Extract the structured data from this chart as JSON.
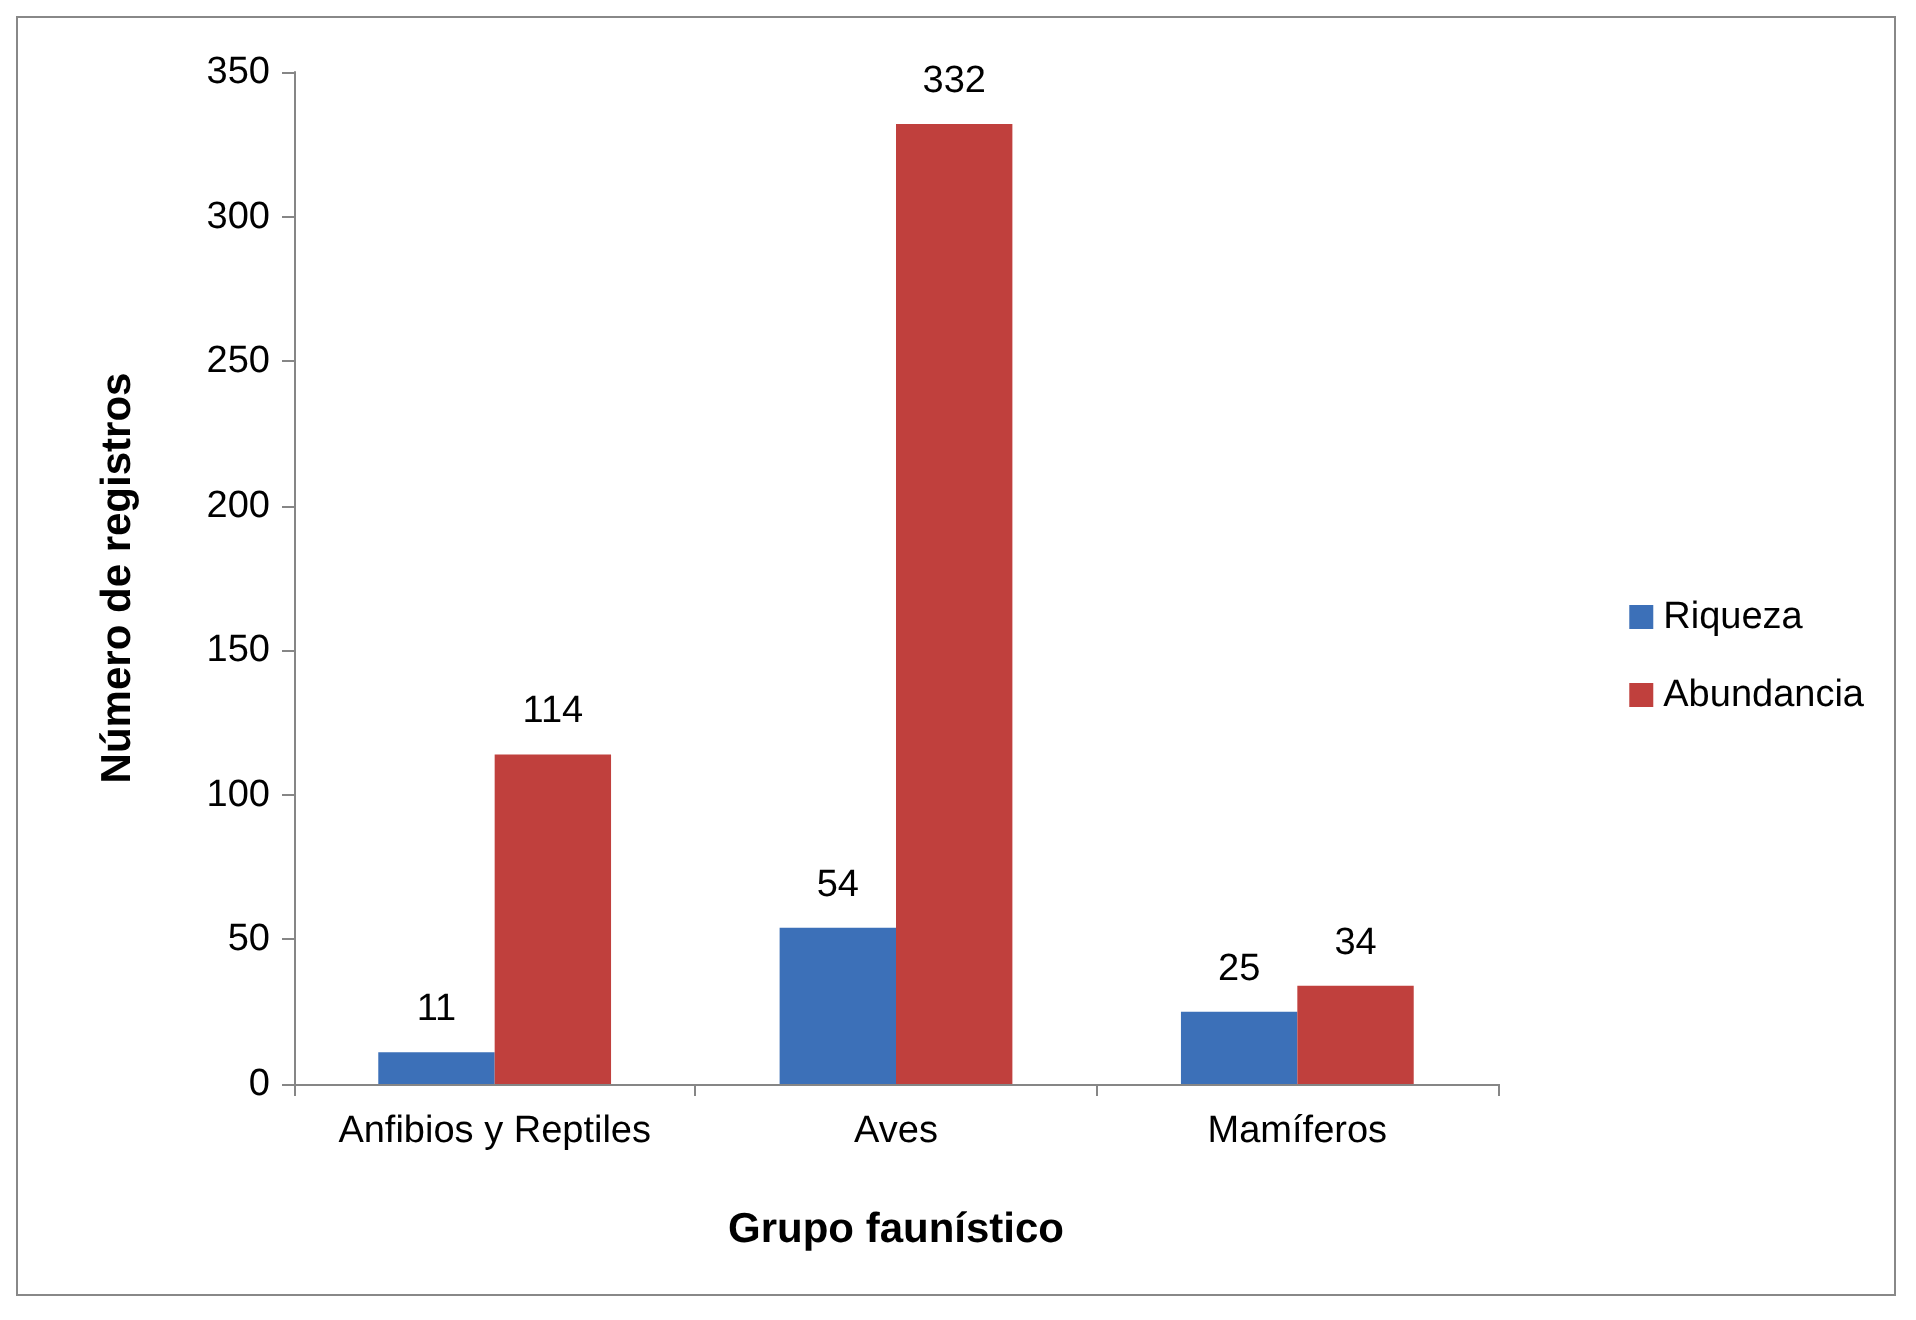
{
  "chart_data": {
    "type": "bar",
    "xlabel": "Grupo faunístico",
    "ylabel": "Número de registros",
    "categories": [
      "Anfibios y Reptiles",
      "Aves",
      "Mamíferos"
    ],
    "series": [
      {
        "name": "Riqueza",
        "color": "#3c70b8",
        "values": [
          11,
          54,
          25
        ]
      },
      {
        "name": "Abundancia",
        "color": "#c0403d",
        "values": [
          114,
          332,
          34
        ]
      }
    ],
    "ylim": [
      0,
      350
    ],
    "yticks": [
      0,
      50,
      100,
      150,
      200,
      250,
      300,
      350
    ],
    "grid": false,
    "legend": "right",
    "data_labels": true
  }
}
